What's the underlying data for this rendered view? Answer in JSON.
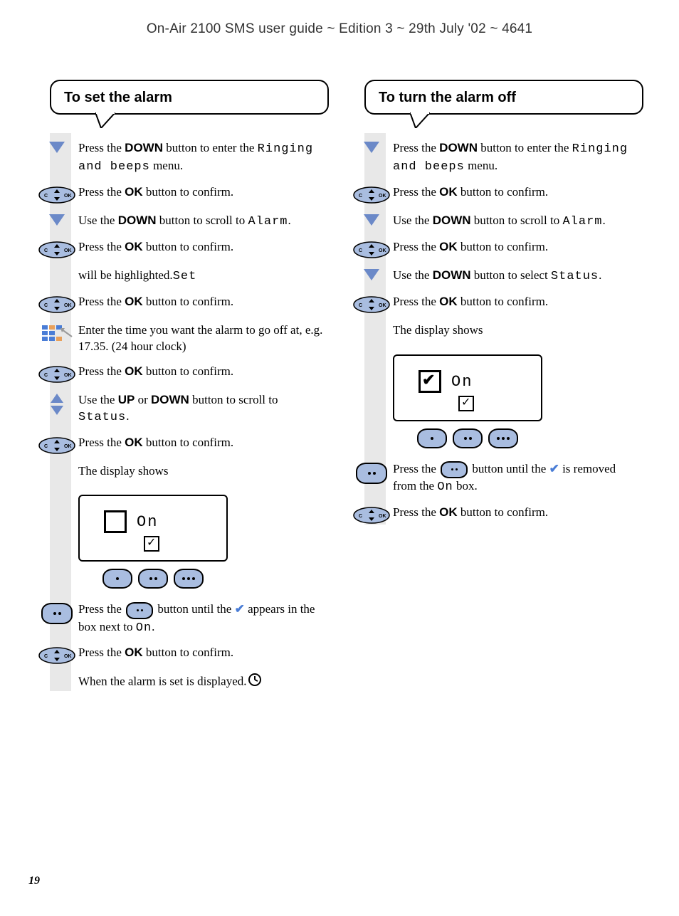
{
  "header": "On-Air 2100 SMS user guide ~ Edition 3 ~ 29th July '02 ~ 4641",
  "page_number": "19",
  "colors": {
    "triangle_blue": "#6b89c8",
    "button_fill": "#a9bde0",
    "check_blue": "#4a7dd6",
    "strip_grey": "#e8e8e8",
    "keypad_blue": "#4a7dd6",
    "keypad_orange": "#e8a05a"
  },
  "left": {
    "title": "To set the alarm",
    "steps": [
      {
        "icon": "down",
        "pre": "Press the ",
        "bold": "DOWN",
        "post": " button to enter the ",
        "lcd": "Ringing and beeps",
        "tail": " menu."
      },
      {
        "icon": "pill",
        "pre": "Press the ",
        "bold": "OK",
        "post": " button to confirm."
      },
      {
        "icon": "down",
        "pre": "Use the ",
        "bold": "DOWN",
        "post": " button to scroll to ",
        "lcd": "Alarm",
        "tail": "."
      },
      {
        "icon": "pill",
        "pre": "Press the ",
        "bold": "OK",
        "post": " button to confirm."
      },
      {
        "icon": "none",
        "lcd": "Set",
        "post": " will be highlighted."
      },
      {
        "icon": "pill",
        "pre": "Press the ",
        "bold": "OK",
        "post": " button to confirm."
      },
      {
        "icon": "keypad",
        "text": "Enter the time you want the alarm to go off at, e.g. 17.35. (24 hour clock)"
      },
      {
        "icon": "pill",
        "pre": "Press the ",
        "bold": "OK",
        "post": " button to confirm."
      },
      {
        "icon": "updown",
        "pre": "Use the ",
        "bold": "UP",
        "mid": " or ",
        "bold2": "DOWN",
        "post": " button to scroll to ",
        "lcd": "Status",
        "tail": "."
      },
      {
        "icon": "pill",
        "pre": "Press the ",
        "bold": "OK",
        "post": " button to confirm."
      },
      {
        "icon": "none",
        "text": "The display shows"
      }
    ],
    "display": {
      "on_label": "On",
      "checked": false
    },
    "after_display": [
      {
        "icon": "oval2",
        "pre": "Press the ",
        "inline_btn": true,
        "post_a": " button until the ",
        "check": "✔",
        "post_b": " appears in the box next to ",
        "lcd": "On",
        "tail": "."
      },
      {
        "icon": "pill",
        "pre": "Press the ",
        "bold": "OK",
        "post": " button to confirm."
      },
      {
        "icon": "none",
        "pre": "When the alarm is set ",
        "clock": true,
        "post": " is displayed."
      }
    ]
  },
  "right": {
    "title": "To turn the alarm off",
    "steps": [
      {
        "icon": "down",
        "pre": "Press the ",
        "bold": "DOWN",
        "post": " button to enter the ",
        "lcd": "Ringing and beeps",
        "tail": " menu."
      },
      {
        "icon": "pill",
        "pre": "Press the ",
        "bold": "OK",
        "post": " button to confirm."
      },
      {
        "icon": "down",
        "pre": "Use the ",
        "bold": "DOWN",
        "post": " button to scroll to ",
        "lcd": "Alarm",
        "tail": "."
      },
      {
        "icon": "pill",
        "pre": "Press the ",
        "bold": "OK",
        "post": " button to confirm."
      },
      {
        "icon": "down",
        "pre": "Use the ",
        "bold": "DOWN",
        "post": " button to select ",
        "lcd": "Status",
        "tail": "."
      },
      {
        "icon": "pill",
        "pre": "Press the ",
        "bold": "OK",
        "post": " button to confirm."
      },
      {
        "icon": "none",
        "text": "The display shows"
      }
    ],
    "display": {
      "on_label": "On",
      "checked": true
    },
    "after_display": [
      {
        "icon": "oval2",
        "pre": "Press the ",
        "inline_btn": true,
        "post_a": " button until the ",
        "check": "✔",
        "post_b": " is removed from the ",
        "lcd": "On",
        "tail": " box."
      },
      {
        "icon": "pill",
        "pre": "Press the ",
        "bold": "OK",
        "post": " button to confirm."
      }
    ]
  }
}
